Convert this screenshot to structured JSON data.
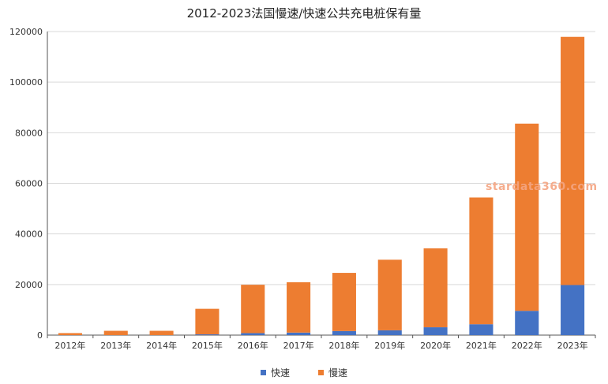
{
  "chart_data": {
    "type": "bar",
    "stacked": true,
    "title": "2012-2023法国慢速/快速公共充电桩保有量",
    "categories": [
      "2012年",
      "2013年",
      "2014年",
      "2015年",
      "2016年",
      "2017年",
      "2018年",
      "2019年",
      "2020年",
      "2021年",
      "2022年",
      "2023年"
    ],
    "series": [
      {
        "name": "快速",
        "color": "#4472c4",
        "values": [
          0,
          0,
          0,
          300,
          800,
          1000,
          1600,
          1900,
          3100,
          4300,
          9600,
          19800
        ]
      },
      {
        "name": "慢速",
        "color": "#ed7d31",
        "values": [
          800,
          1700,
          1700,
          10100,
          19100,
          19900,
          23000,
          27900,
          31200,
          50100,
          74000,
          98100
        ]
      }
    ],
    "ylim": [
      0,
      120000
    ],
    "yticks": [
      0,
      20000,
      40000,
      60000,
      80000,
      100000,
      120000
    ],
    "grid": true,
    "legend_position": "bottom"
  },
  "watermark": "stardata360.com"
}
